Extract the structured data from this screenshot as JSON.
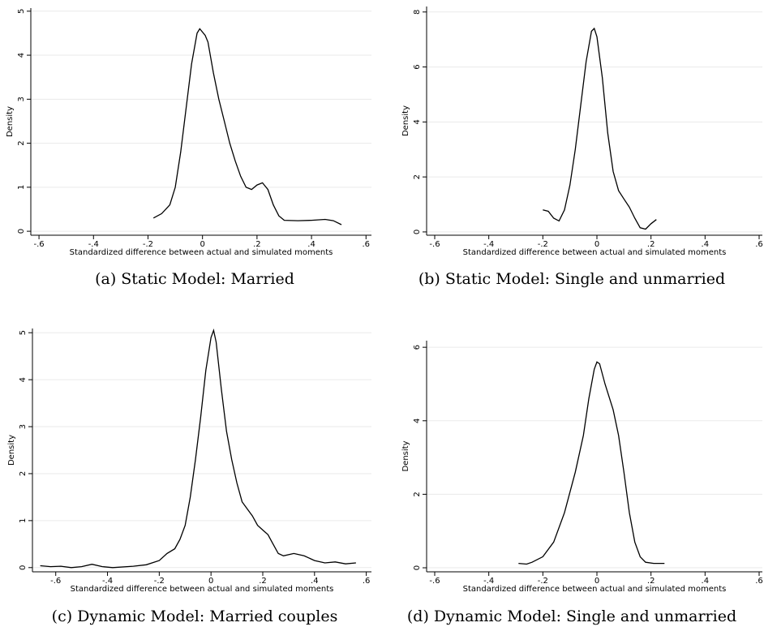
{
  "chart_data": [
    {
      "type": "line",
      "caption": "(a) Static Model: Married",
      "xlabel": "Standardized difference between actual and simulated moments",
      "ylabel": "Density",
      "color": "#000000",
      "grid": true,
      "xlim": [
        -0.63,
        0.62
      ],
      "ylim": [
        -0.09,
        5.07
      ],
      "xticks": [
        {
          "value": -0.6,
          "label": "-.6"
        },
        {
          "value": -0.4,
          "label": "-.4"
        },
        {
          "value": -0.2,
          "label": "-.2"
        },
        0,
        {
          "value": 0.2,
          "label": ".2"
        },
        {
          "value": 0.4,
          "label": ".4"
        },
        {
          "value": 0.6,
          "label": ".6"
        }
      ],
      "yticks": [
        0,
        1,
        2,
        3,
        4,
        5
      ],
      "x": [
        -0.18,
        -0.15,
        -0.12,
        -0.1,
        -0.08,
        -0.06,
        -0.04,
        -0.02,
        -0.01,
        0.01,
        0.02,
        0.04,
        0.06,
        0.08,
        0.1,
        0.12,
        0.14,
        0.16,
        0.18,
        0.2,
        0.22,
        0.24,
        0.26,
        0.28,
        0.3,
        0.35,
        0.4,
        0.45,
        0.48,
        0.51
      ],
      "values": [
        0.3,
        0.4,
        0.6,
        1.0,
        1.8,
        2.8,
        3.8,
        4.5,
        4.6,
        4.45,
        4.3,
        3.6,
        3.0,
        2.5,
        2.0,
        1.6,
        1.25,
        1.0,
        0.95,
        1.05,
        1.1,
        0.95,
        0.6,
        0.35,
        0.25,
        0.24,
        0.25,
        0.27,
        0.24,
        0.15
      ]
    },
    {
      "type": "line",
      "caption": "(b) Static Model: Single and unmarried",
      "xlabel": "Standardized difference between actual and simulated moments",
      "ylabel": "Density",
      "color": "#000000",
      "grid": true,
      "xlim": [
        -0.63,
        0.612
      ],
      "ylim": [
        -0.12,
        8.2
      ],
      "xticks": [
        {
          "value": -0.6,
          "label": "-.6"
        },
        {
          "value": -0.4,
          "label": "-.4"
        },
        {
          "value": -0.2,
          "label": "-.2"
        },
        0,
        {
          "value": 0.2,
          "label": ".2"
        },
        {
          "value": 0.4,
          "label": ".4"
        },
        {
          "value": 0.6,
          "label": ".6"
        }
      ],
      "yticks": [
        0,
        2,
        4,
        6,
        8
      ],
      "x": [
        -0.2,
        -0.18,
        -0.16,
        -0.14,
        -0.12,
        -0.1,
        -0.08,
        -0.06,
        -0.04,
        -0.02,
        -0.01,
        0,
        0.02,
        0.04,
        0.06,
        0.08,
        0.1,
        0.12,
        0.14,
        0.16,
        0.18,
        0.2,
        0.22
      ],
      "values": [
        0.8,
        0.75,
        0.5,
        0.4,
        0.8,
        1.7,
        3.0,
        4.6,
        6.2,
        7.3,
        7.4,
        7.1,
        5.6,
        3.6,
        2.2,
        1.5,
        1.2,
        0.9,
        0.5,
        0.15,
        0.1,
        0.3,
        0.45
      ]
    },
    {
      "type": "line",
      "caption": "(c) Dynamic Model: Married couples",
      "xlabel": "Standardized difference between actual and simulated moments",
      "ylabel": "Density",
      "color": "#000000",
      "grid": true,
      "xlim": [
        -0.69,
        0.62
      ],
      "ylim": [
        -0.09,
        5.09
      ],
      "xticks": [
        {
          "value": -0.6,
          "label": "-.6"
        },
        {
          "value": -0.4,
          "label": "-.4"
        },
        {
          "value": -0.2,
          "label": "-.2"
        },
        0,
        {
          "value": 0.2,
          "label": ".2"
        },
        {
          "value": 0.4,
          "label": ".4"
        },
        {
          "value": 0.6,
          "label": ".6"
        }
      ],
      "yticks": [
        0,
        1,
        2,
        3,
        4,
        5
      ],
      "x": [
        -0.66,
        -0.62,
        -0.58,
        -0.54,
        -0.5,
        -0.46,
        -0.42,
        -0.38,
        -0.3,
        -0.25,
        -0.2,
        -0.17,
        -0.14,
        -0.12,
        -0.1,
        -0.08,
        -0.06,
        -0.04,
        -0.02,
        0,
        0.01,
        0.02,
        0.04,
        0.06,
        0.08,
        0.1,
        0.12,
        0.14,
        0.16,
        0.18,
        0.2,
        0.22,
        0.24,
        0.26,
        0.28,
        0.32,
        0.36,
        0.4,
        0.44,
        0.48,
        0.52,
        0.56
      ],
      "values": [
        0.04,
        0.02,
        0.03,
        0.0,
        0.02,
        0.07,
        0.02,
        0.0,
        0.03,
        0.06,
        0.15,
        0.3,
        0.4,
        0.6,
        0.9,
        1.5,
        2.3,
        3.2,
        4.2,
        4.9,
        5.05,
        4.8,
        3.8,
        2.9,
        2.3,
        1.8,
        1.4,
        1.25,
        1.1,
        0.9,
        0.8,
        0.7,
        0.5,
        0.3,
        0.25,
        0.3,
        0.25,
        0.15,
        0.1,
        0.12,
        0.08,
        0.1
      ]
    },
    {
      "type": "line",
      "caption": "(d) Dynamic Model: Single and unmarried",
      "xlabel": "Standardized difference between actual and simulated moments",
      "ylabel": "Density",
      "color": "#000000",
      "grid": true,
      "xlim": [
        -0.63,
        0.612
      ],
      "ylim": [
        -0.11,
        6.18
      ],
      "xticks": [
        {
          "value": -0.6,
          "label": "-.6"
        },
        {
          "value": -0.4,
          "label": "-.4"
        },
        {
          "value": -0.2,
          "label": "-.2"
        },
        0,
        {
          "value": 0.2,
          "label": ".2"
        },
        {
          "value": 0.4,
          "label": ".4"
        },
        {
          "value": 0.6,
          "label": ".6"
        }
      ],
      "yticks": [
        0,
        2,
        4,
        6
      ],
      "x": [
        -0.29,
        -0.26,
        -0.24,
        -0.2,
        -0.16,
        -0.12,
        -0.08,
        -0.05,
        -0.03,
        -0.01,
        0,
        0.01,
        0.03,
        0.06,
        0.08,
        0.1,
        0.12,
        0.14,
        0.16,
        0.18,
        0.21,
        0.25
      ],
      "values": [
        0.12,
        0.1,
        0.15,
        0.3,
        0.7,
        1.5,
        2.6,
        3.6,
        4.6,
        5.4,
        5.6,
        5.55,
        5.0,
        4.3,
        3.6,
        2.6,
        1.5,
        0.7,
        0.3,
        0.15,
        0.12,
        0.12
      ]
    }
  ]
}
